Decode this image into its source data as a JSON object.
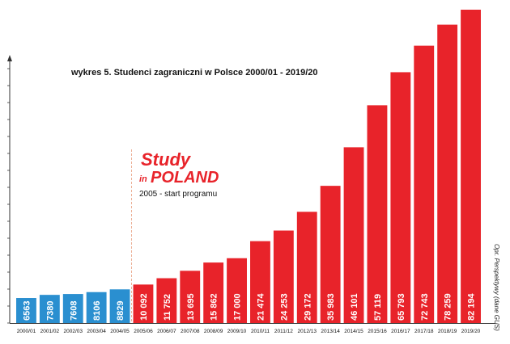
{
  "chart_data": {
    "type": "bar",
    "title": "wykres 5. Studenci zagraniczni w Polsce 2000/01 - 2019/20",
    "categories": [
      "2000/01",
      "2001/02",
      "2002/03",
      "2003/04",
      "2004/05",
      "2005/06",
      "2006/07",
      "2007/08",
      "2008/09",
      "2009/10",
      "2010/11",
      "2011/12",
      "2012/13",
      "2013/14",
      "2014/15",
      "2015/16",
      "2016/17",
      "2017/18",
      "2018/19",
      "2019/20"
    ],
    "values": [
      6563,
      7380,
      7608,
      8106,
      8829,
      10092,
      11752,
      13695,
      15862,
      17000,
      21474,
      24253,
      29172,
      35983,
      46101,
      57119,
      65793,
      72743,
      78259,
      82194
    ],
    "value_labels": [
      "6563",
      "7380",
      "7608",
      "8106",
      "8829",
      "10 092",
      "11 752",
      "13 695",
      "15 862",
      "17 000",
      "21 474",
      "24 253",
      "29 172",
      "35 983",
      "46 101",
      "57 119",
      "65 793",
      "72 743",
      "78 259",
      "82 194"
    ],
    "ylim": [
      0,
      82194
    ],
    "xlabel": "",
    "ylabel": "",
    "grid": false,
    "colors": {
      "before_program": "#2a8fd0",
      "after_program": "#e8232a",
      "axis": "#333333",
      "marker_line": "#e89a7a"
    },
    "program_start_category": "2005/06",
    "annotation": {
      "logo_study": "Study",
      "logo_in": "in",
      "logo_poland": "POLAND",
      "text": "2005 - start programu"
    },
    "source": "Opr. Perspektywy (dane GUS)"
  }
}
